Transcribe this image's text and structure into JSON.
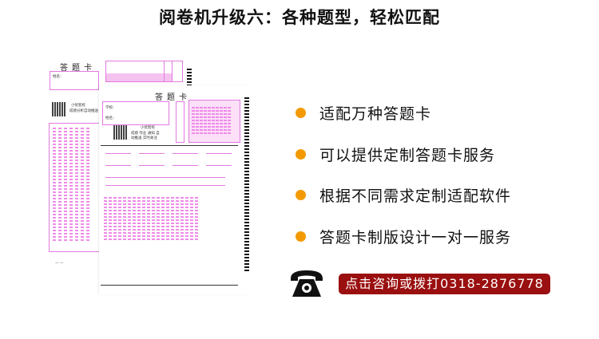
{
  "header": {
    "title": "阅卷机升级六：各种题型，轻松匹配"
  },
  "sheets": {
    "back_title": "答题卡",
    "front_title": "答题卡",
    "brand": "小优智校",
    "subtitle": "成绩分析自动推送",
    "front_sub": "成绩 作业 通知 自动推送 实时关注",
    "name_label": "姓名：",
    "school_label": "学校:"
  },
  "features": [
    {
      "label": "适配万种答题卡"
    },
    {
      "label": "可以提供定制答题卡服务"
    },
    {
      "label": "根据不同需求定制适配软件"
    },
    {
      "label": "答题卡制版设计一对一服务"
    }
  ],
  "contact": {
    "icon": "telephone-icon",
    "label": "点击咨询或拨打0318-2876778"
  },
  "colors": {
    "bullet": "#f39a00",
    "banner": "#9a0f0f",
    "sheet_accent": "#e27ae0"
  }
}
